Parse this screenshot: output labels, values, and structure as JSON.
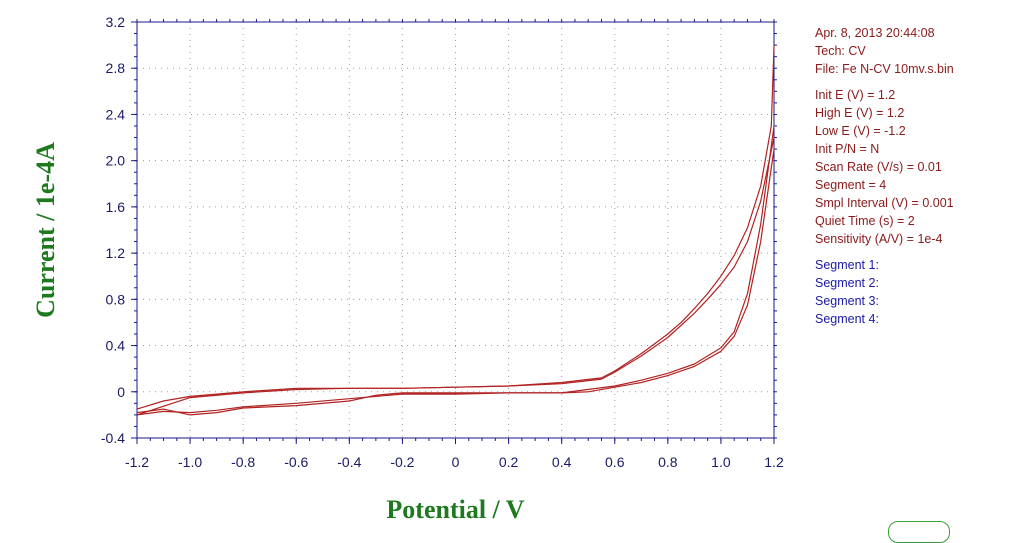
{
  "chart_data": {
    "type": "line",
    "xlabel": "Potential / V",
    "ylabel": "Current / 1e-4A",
    "xlim": [
      -1.2,
      1.2
    ],
    "ylim": [
      -0.4,
      3.2
    ],
    "x_reversed": false,
    "grid": "dotted",
    "x_ticks": [
      "-1.2",
      "-1.0",
      "-0.8",
      "-0.6",
      "-0.4",
      "-0.2",
      "0",
      "0.2",
      "0.4",
      "0.6",
      "0.8",
      "1.0",
      "1.2"
    ],
    "y_ticks": [
      "-0.4",
      "0",
      "0.4",
      "0.8",
      "1.2",
      "1.6",
      "2.0",
      "2.4",
      "2.8",
      "3.2"
    ],
    "line_color": "#b22222",
    "series": [
      {
        "x": [
          1.2,
          1.19,
          1.15,
          1.1,
          1.05,
          1.0,
          0.95,
          0.9,
          0.85,
          0.8,
          0.7,
          0.6,
          0.55,
          0.4,
          0.2,
          0.0,
          -0.2,
          -0.4,
          -0.6,
          -0.8,
          -1.0,
          -1.1,
          -1.2
        ],
        "y": [
          3.0,
          2.3,
          1.78,
          1.42,
          1.18,
          1.0,
          0.85,
          0.72,
          0.6,
          0.5,
          0.33,
          0.18,
          0.12,
          0.08,
          0.05,
          0.04,
          0.03,
          0.03,
          0.03,
          0.0,
          -0.04,
          -0.08,
          -0.15
        ]
      },
      {
        "x": [
          -1.2,
          -1.1,
          -1.0,
          -0.9,
          -0.8,
          -0.6,
          -0.4,
          -0.3,
          -0.2,
          0.0,
          0.2,
          0.4,
          0.5,
          0.6,
          0.7,
          0.8,
          0.9,
          1.0,
          1.05,
          1.1,
          1.15,
          1.2
        ],
        "y": [
          -0.18,
          -0.15,
          -0.2,
          -0.18,
          -0.14,
          -0.12,
          -0.08,
          -0.03,
          -0.01,
          -0.01,
          -0.01,
          -0.01,
          0.0,
          0.04,
          0.08,
          0.14,
          0.22,
          0.35,
          0.48,
          0.75,
          1.3,
          2.1
        ]
      },
      {
        "x": [
          1.2,
          1.15,
          1.1,
          1.05,
          1.0,
          0.95,
          0.9,
          0.8,
          0.7,
          0.6,
          0.55,
          0.4,
          0.2,
          0.0,
          -0.2,
          -0.4,
          -0.6,
          -0.8,
          -1.0,
          -1.2
        ],
        "y": [
          2.2,
          1.65,
          1.3,
          1.08,
          0.93,
          0.8,
          0.68,
          0.47,
          0.31,
          0.17,
          0.11,
          0.07,
          0.05,
          0.04,
          0.03,
          0.03,
          0.02,
          -0.01,
          -0.05,
          -0.2
        ]
      },
      {
        "x": [
          -1.2,
          -1.1,
          -1.0,
          -0.9,
          -0.8,
          -0.6,
          -0.4,
          -0.2,
          0.0,
          0.2,
          0.4,
          0.6,
          0.7,
          0.8,
          0.9,
          1.0,
          1.05,
          1.1,
          1.15,
          1.2
        ],
        "y": [
          -0.2,
          -0.17,
          -0.18,
          -0.16,
          -0.13,
          -0.1,
          -0.06,
          -0.02,
          -0.02,
          -0.01,
          -0.01,
          0.05,
          0.1,
          0.16,
          0.24,
          0.38,
          0.52,
          0.85,
          1.45,
          2.3
        ]
      }
    ]
  },
  "info": {
    "date_line": "Apr. 8, 2013   20:44:08",
    "tech": "Tech: CV",
    "file": "File: Fe N-CV 10mv.s.bin",
    "params": [
      "Init E (V) = 1.2",
      "High E (V) = 1.2",
      "Low E (V) = -1.2",
      "Init P/N = N",
      "Scan Rate (V/s) = 0.01",
      "Segment = 4",
      "Smpl Interval (V) = 0.001",
      "Quiet Time (s) = 2",
      "Sensitivity (A/V) = 1e-4"
    ],
    "segments": [
      "Segment 1:",
      "Segment 2:",
      "Segment 3:",
      "Segment 4:"
    ]
  },
  "colors": {
    "axis": "#1a1a8a",
    "grid": "#9a9ab0",
    "curve": "#b22222",
    "axis_title": "#1f7a1f",
    "info_text": "#8b1a1a",
    "segment_text": "#1a1aa6"
  }
}
